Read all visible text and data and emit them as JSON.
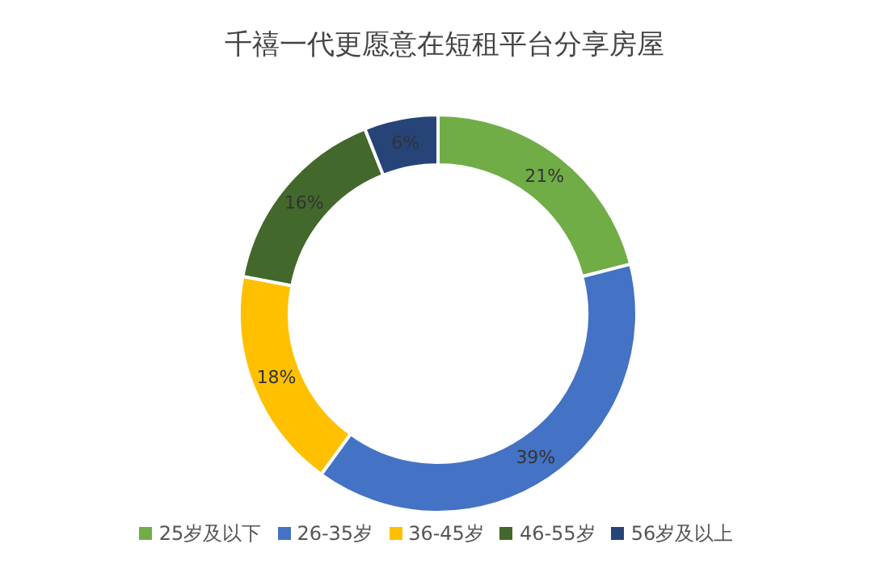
{
  "chart_data": {
    "type": "donut",
    "title": "千禧一代更愿意在短租平台分享房屋",
    "categories": [
      "25岁及以下",
      "26-35岁",
      "36-45岁",
      "46-55岁",
      "56岁及以上"
    ],
    "values": [
      21,
      39,
      18,
      16,
      6
    ],
    "colors": [
      "#70ad47",
      "#4472c4",
      "#ffc000",
      "#43682b",
      "#264478"
    ],
    "value_labels": [
      "21%",
      "39%",
      "18%",
      "16%",
      "6%"
    ],
    "legend": "bottom"
  }
}
